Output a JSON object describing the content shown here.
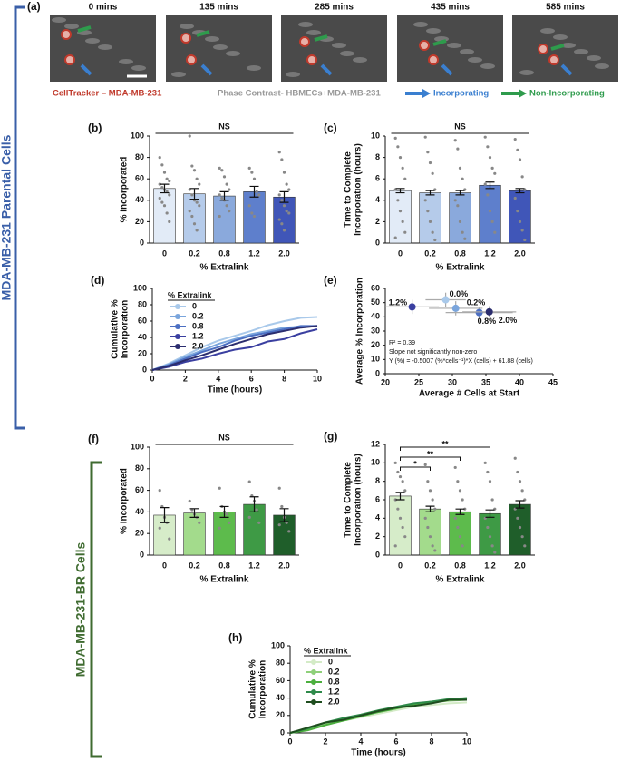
{
  "side_labels": [
    "MDA-MB-231 Parental Cells",
    "MDA-MB-231-BR Cells"
  ],
  "panel_a": {
    "label": "(a)",
    "times": [
      "0 mins",
      "135 mins",
      "285 mins",
      "435 mins",
      "585 mins"
    ],
    "legend": [
      "CellTracker – MDA-MB-231",
      "Phase Contrast- HBMECs+MDA-MB-231",
      "Incorporating",
      "Non-Incorporating"
    ]
  },
  "chart_data": [
    {
      "type": "bar",
      "panel": "(b)",
      "annotation": "NS",
      "categories": [
        "0",
        "0.2",
        "0.8",
        "1.2",
        "2.0"
      ],
      "values": [
        51,
        46,
        44,
        48,
        43
      ],
      "errors": [
        4,
        5,
        4,
        5,
        5
      ],
      "points": [
        [
          80,
          73,
          66,
          60,
          58,
          55,
          52,
          50,
          48,
          45,
          42,
          38,
          35,
          28,
          20
        ],
        [
          100,
          72,
          68,
          60,
          55,
          50,
          45,
          40,
          38,
          35,
          30,
          25,
          18,
          12
        ],
        [
          70,
          68,
          62,
          55,
          50,
          45,
          42,
          40,
          35,
          30,
          25
        ],
        [
          70,
          66,
          60,
          48,
          45,
          35,
          28,
          25
        ],
        [
          85,
          78,
          66,
          55,
          50,
          45,
          40,
          35,
          30,
          28,
          22,
          18,
          12
        ]
      ],
      "colors": [
        "#e2ebf7",
        "#b5cbea",
        "#8aa9dc",
        "#5e7fcc",
        "#4056b8"
      ],
      "xlabel": "% Extralink",
      "ylabel": [
        "% Incorporated"
      ],
      "ylim": [
        0,
        100
      ],
      "yticks": [
        0,
        20,
        40,
        60,
        80,
        100
      ]
    },
    {
      "type": "bar",
      "panel": "(c)",
      "annotation": "NS",
      "categories": [
        "0",
        "0.2",
        "0.8",
        "1.2",
        "2.0"
      ],
      "values": [
        4.9,
        4.7,
        4.7,
        5.4,
        4.9
      ],
      "errors": [
        0.2,
        0.2,
        0.2,
        0.3,
        0.2
      ],
      "points": [
        [
          9.8,
          9,
          8,
          7,
          6,
          5,
          4,
          3,
          2,
          1,
          0.5
        ],
        [
          9.9,
          8.5,
          7.5,
          6.5,
          5,
          4,
          3,
          2,
          1,
          0.3
        ],
        [
          9.6,
          8.8,
          7,
          6,
          5,
          4,
          3.5,
          2,
          1,
          0.4
        ],
        [
          9.9,
          9,
          8,
          7,
          6.5,
          5.5,
          4.5,
          3,
          2,
          1
        ],
        [
          9.7,
          8.7,
          7.8,
          6.2,
          5,
          4.2,
          3,
          2,
          1.2,
          0.3
        ]
      ],
      "colors": [
        "#e2ebf7",
        "#b5cbea",
        "#8aa9dc",
        "#5e7fcc",
        "#4056b8"
      ],
      "xlabel": "% Extralink",
      "ylabel": [
        "Time to Complete",
        "Incorporation (hours)"
      ],
      "ylim": [
        0,
        10
      ],
      "yticks": [
        0,
        2,
        4,
        6,
        8,
        10
      ]
    },
    {
      "type": "line",
      "panel": "(d)",
      "legend_title": "% Extralink",
      "x": [
        0,
        1,
        2,
        3,
        4,
        5,
        6,
        7,
        8,
        9,
        10
      ],
      "series": [
        {
          "name": "0",
          "color": "#a9c9ea",
          "values": [
            0,
            8,
            18,
            28,
            36,
            42,
            48,
            55,
            60,
            64,
            65
          ]
        },
        {
          "name": "0.2",
          "color": "#7aa5dc",
          "values": [
            0,
            7,
            16,
            24,
            32,
            38,
            44,
            48,
            52,
            53,
            54
          ]
        },
        {
          "name": "0.8",
          "color": "#4c6fc2",
          "values": [
            0,
            6,
            14,
            22,
            28,
            36,
            42,
            46,
            50,
            54,
            54
          ]
        },
        {
          "name": "1.2",
          "color": "#3a3fa0",
          "values": [
            0,
            4,
            10,
            14,
            20,
            25,
            28,
            35,
            38,
            45,
            50
          ]
        },
        {
          "name": "2.0",
          "color": "#2b2d6e",
          "values": [
            0,
            5,
            12,
            18,
            25,
            32,
            38,
            44,
            48,
            52,
            54
          ]
        }
      ],
      "xlabel": "Time (hours)",
      "ylabel": [
        "Cumulative %",
        "Incorporation"
      ],
      "xlim": [
        0,
        10
      ],
      "xticks": [
        0,
        2,
        4,
        6,
        8,
        10
      ],
      "ylim": [
        0,
        100
      ],
      "yticks": [
        0,
        20,
        40,
        60,
        80,
        100
      ]
    },
    {
      "type": "scatter",
      "panel": "(e)",
      "points": [
        {
          "label": "0.0%",
          "x": 29,
          "y": 52,
          "xerr": 3,
          "yerr": 5,
          "color": "#a9c9ea"
        },
        {
          "label": "0.2%",
          "x": 30.5,
          "y": 46,
          "xerr": 4,
          "yerr": 5,
          "color": "#7aa5dc"
        },
        {
          "label": "1.2%",
          "x": 24,
          "y": 47,
          "xerr": 4,
          "yerr": 5,
          "color": "#3a3fa0"
        },
        {
          "label": "0.8%",
          "x": 34,
          "y": 43,
          "xerr": 5,
          "yerr": 4,
          "color": "#4c6fc2"
        },
        {
          "label": "2.0%",
          "x": 35.5,
          "y": 43.5,
          "xerr": 4,
          "yerr": 4,
          "color": "#2b2d6e"
        }
      ],
      "annotations": [
        "R² = 0.39",
        "Slope not significantly non-zero",
        "Y (%) = -0.5007 (%*cells⁻¹)*X (cells) + 61.88 (cells)"
      ],
      "xlabel": "Average # Cells at Start",
      "ylabel": [
        "Average % Incorporation"
      ],
      "xlim": [
        20,
        45
      ],
      "xticks": [
        20,
        25,
        30,
        35,
        40,
        45
      ],
      "ylim": [
        0,
        60
      ],
      "yticks": [
        0,
        10,
        20,
        30,
        40,
        50,
        60
      ]
    },
    {
      "type": "bar",
      "panel": "(f)",
      "annotation": "NS",
      "categories": [
        "0",
        "0.2",
        "0.8",
        "1.2",
        "2.0"
      ],
      "values": [
        37,
        39,
        40,
        47,
        37
      ],
      "errors": [
        7,
        4,
        5,
        7,
        6
      ],
      "points": [
        [
          60,
          45,
          35,
          30,
          15,
          25
        ],
        [
          50,
          42,
          38,
          35,
          30
        ],
        [
          62,
          45,
          40,
          38,
          30,
          25
        ],
        [
          68,
          55,
          50,
          42,
          30,
          35
        ],
        [
          62,
          45,
          35,
          30,
          22,
          28
        ]
      ],
      "colors": [
        "#d6ecc9",
        "#a3db8c",
        "#5dbb4c",
        "#3e9a45",
        "#1f5e2a"
      ],
      "xlabel": "% Extralink",
      "ylabel": [
        "% Incorporated"
      ],
      "ylim": [
        0,
        100
      ],
      "yticks": [
        0,
        20,
        40,
        60,
        80,
        100
      ]
    },
    {
      "type": "bar",
      "panel": "(g)",
      "categories": [
        "0",
        "0.2",
        "0.8",
        "1.2",
        "2.0"
      ],
      "values": [
        6.4,
        5.0,
        4.7,
        4.5,
        5.5
      ],
      "errors": [
        0.4,
        0.3,
        0.3,
        0.4,
        0.4
      ],
      "points": [
        [
          10,
          9,
          8.5,
          8,
          7,
          6,
          5,
          4,
          3,
          2,
          1
        ],
        [
          9.8,
          8,
          7,
          6,
          5,
          4,
          3,
          2,
          1,
          0.5
        ],
        [
          9.5,
          8,
          7,
          6,
          5,
          4,
          3,
          2,
          1
        ],
        [
          10,
          9,
          8,
          6,
          5,
          4,
          3,
          2,
          1,
          0.3
        ],
        [
          10.5,
          9,
          8,
          7,
          6,
          5,
          4,
          3,
          2,
          1
        ]
      ],
      "colors": [
        "#d6ecc9",
        "#a3db8c",
        "#5dbb4c",
        "#3e9a45",
        "#1f5e2a"
      ],
      "brackets": [
        {
          "label": "**",
          "between": [
            "0",
            "1.2"
          ]
        },
        {
          "label": "**",
          "between": [
            "0",
            "0.8"
          ]
        },
        {
          "label": "*",
          "between": [
            "0",
            "0.2"
          ]
        }
      ],
      "xlabel": "% Extralink",
      "ylabel": [
        "Time to Complete",
        "Incorporation (hours)"
      ],
      "ylim": [
        0,
        12
      ],
      "yticks": [
        0,
        2,
        4,
        6,
        8,
        10,
        12
      ]
    },
    {
      "type": "line",
      "panel": "(h)",
      "legend_title": "% Extralink",
      "x": [
        0,
        1,
        2,
        3,
        4,
        5,
        6,
        7,
        8,
        9,
        10
      ],
      "series": [
        {
          "name": "0",
          "color": "#d4ebc7",
          "values": [
            0,
            4,
            10,
            14,
            18,
            22,
            26,
            30,
            32,
            34,
            35
          ]
        },
        {
          "name": "0.2",
          "color": "#8fd07a",
          "values": [
            0,
            5,
            11,
            16,
            20,
            24,
            28,
            32,
            35,
            37,
            38
          ]
        },
        {
          "name": "0.8",
          "color": "#4caf3e",
          "values": [
            0,
            3,
            9,
            14,
            19,
            24,
            28,
            33,
            36,
            38,
            40
          ]
        },
        {
          "name": "1.2",
          "color": "#2e8a4a",
          "values": [
            0,
            5,
            12,
            17,
            21,
            26,
            30,
            34,
            36,
            39,
            40
          ]
        },
        {
          "name": "2.0",
          "color": "#1f4d1f",
          "values": [
            0,
            6,
            12,
            15,
            20,
            25,
            29,
            31,
            34,
            38,
            38
          ]
        }
      ],
      "xlabel": "Time (hours)",
      "ylabel": [
        "Cumulative %",
        "Incorporation"
      ],
      "xlim": [
        0,
        10
      ],
      "xticks": [
        0,
        2,
        4,
        6,
        8,
        10
      ],
      "ylim": [
        0,
        100
      ],
      "yticks": [
        0,
        20,
        40,
        60,
        80,
        100
      ]
    }
  ]
}
